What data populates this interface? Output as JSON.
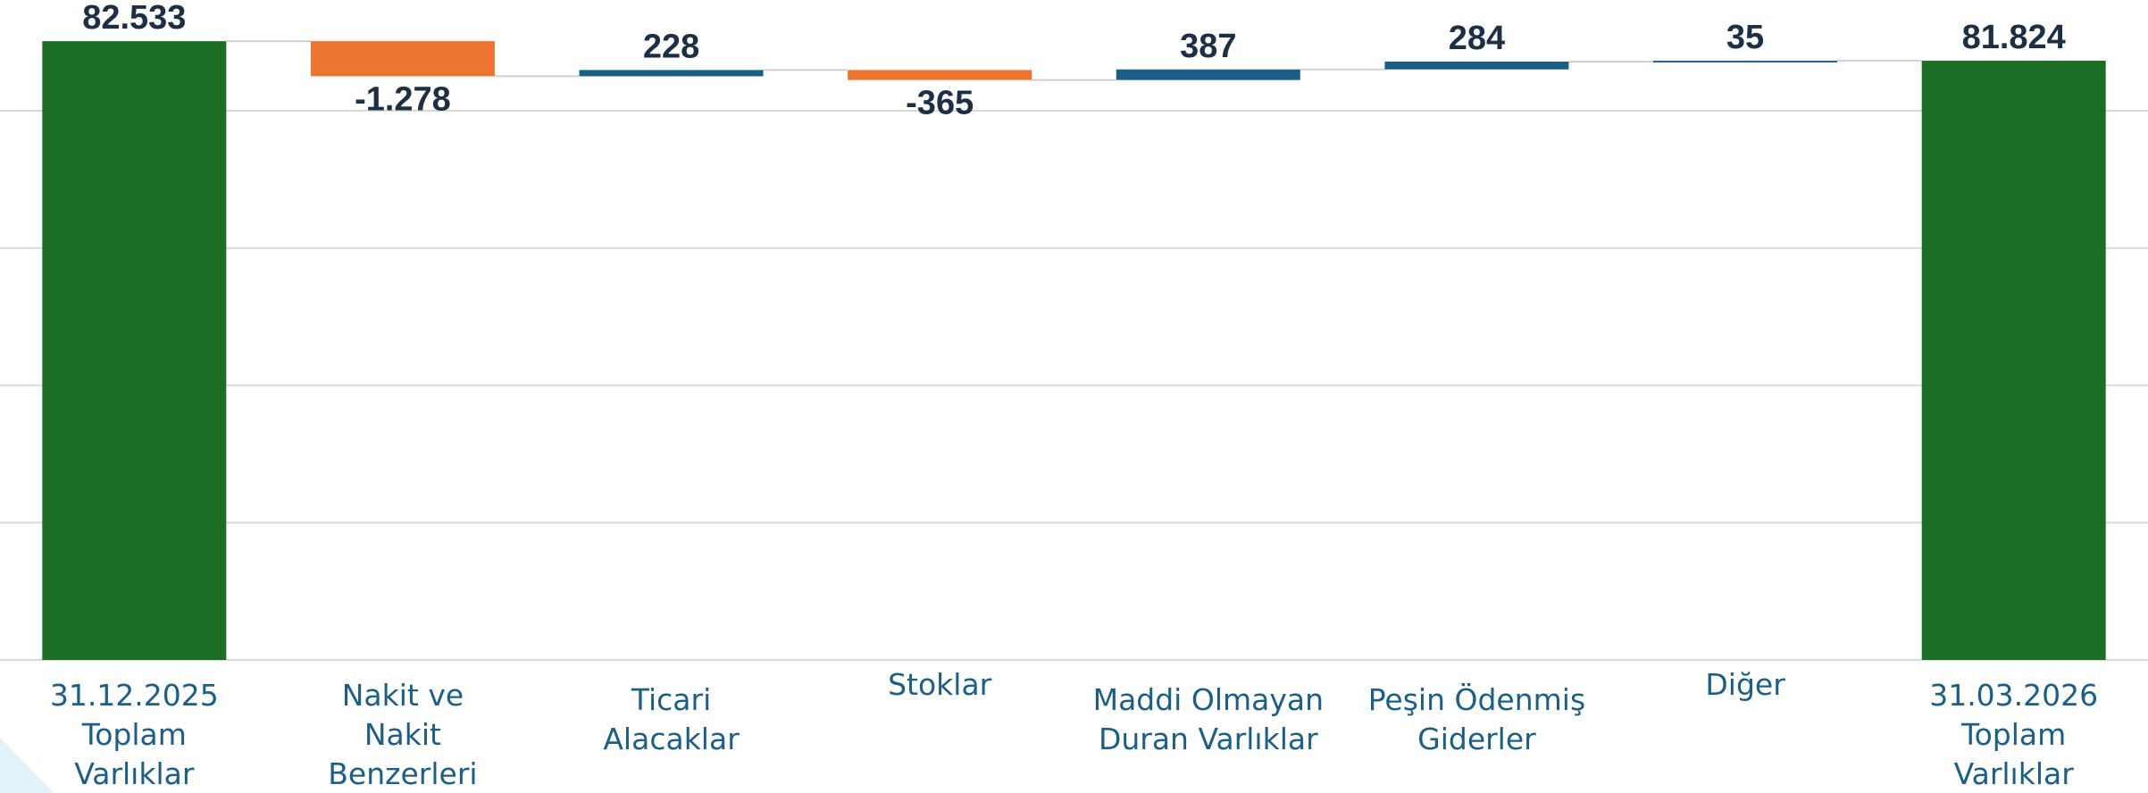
{
  "chart_data": {
    "type": "waterfall",
    "categories": [
      "31.12.2025\nToplam\nVarlıklar",
      "Nakit ve\nNakit\nBenzerleri",
      "Ticari\nAlacaklar",
      "Stoklar",
      "Maddi Olmayan\nDuran Varlıklar",
      "Peşin Ödenmiş\nGiderler",
      "Diğer",
      "31.03.2026\nToplam\nVarlıklar"
    ],
    "values": [
      82533,
      -1278,
      228,
      -365,
      387,
      284,
      35,
      81824
    ],
    "value_labels": [
      "82.533",
      "-1.278",
      "228",
      "-365",
      "387",
      "284",
      "35",
      "81.824"
    ],
    "measure": [
      "total",
      "relative",
      "relative",
      "relative",
      "relative",
      "relative",
      "relative",
      "total"
    ],
    "colors": {
      "total": "#1b6e24",
      "increase": "#1b5e86",
      "decrease": "#ed7431"
    },
    "ylim": [
      60000,
      84000
    ],
    "yticks": [
      60000,
      65000,
      70000,
      75000,
      80000
    ],
    "grid": true
  }
}
